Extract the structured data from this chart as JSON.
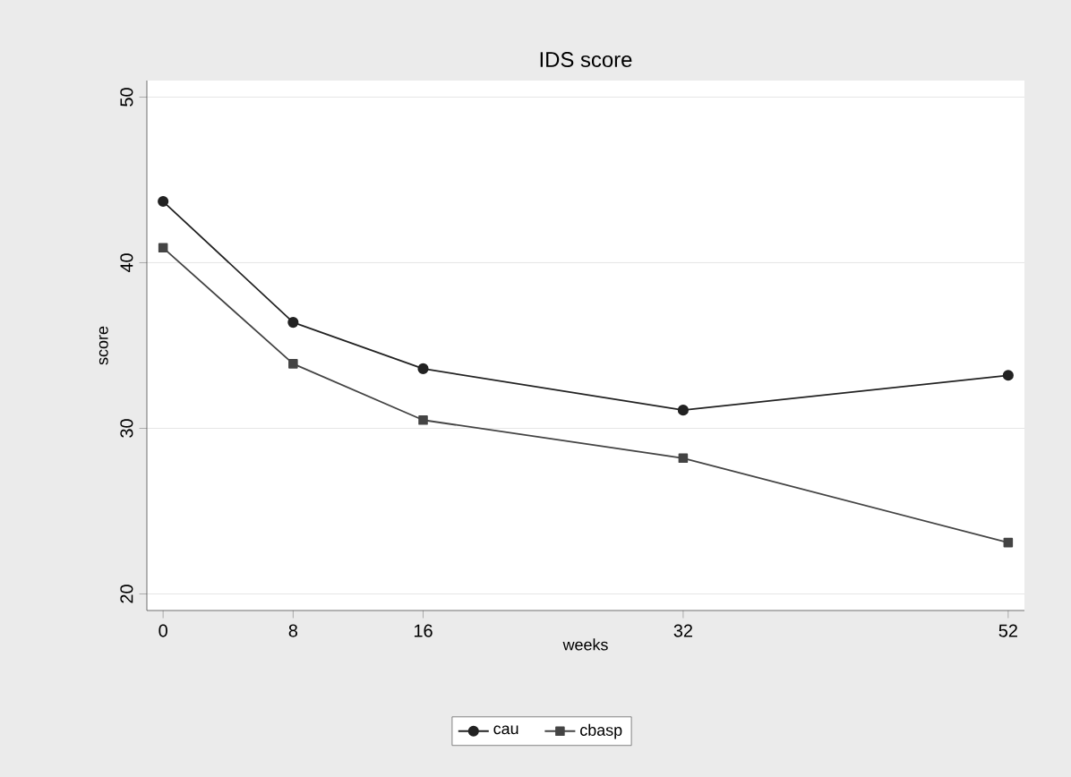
{
  "chart_data": {
    "type": "line",
    "title": "IDS score",
    "xlabel": "weeks",
    "ylabel": "score",
    "x": [
      0,
      8,
      16,
      32,
      52
    ],
    "series": [
      {
        "name": "cau",
        "color": "#222222",
        "marker": "circle",
        "values": [
          43.7,
          36.4,
          33.6,
          31.1,
          33.2
        ]
      },
      {
        "name": "cbasp",
        "color": "#444444",
        "marker": "square",
        "values": [
          40.9,
          33.9,
          30.5,
          28.2,
          23.1
        ]
      }
    ],
    "xlim": [
      -1,
      53
    ],
    "ylim": [
      19,
      51
    ],
    "xticks": [
      0,
      8,
      16,
      32,
      52
    ],
    "yticks": [
      20,
      30,
      40,
      50
    ],
    "grid": "y",
    "legend": "bottom",
    "line_style": "solid"
  }
}
